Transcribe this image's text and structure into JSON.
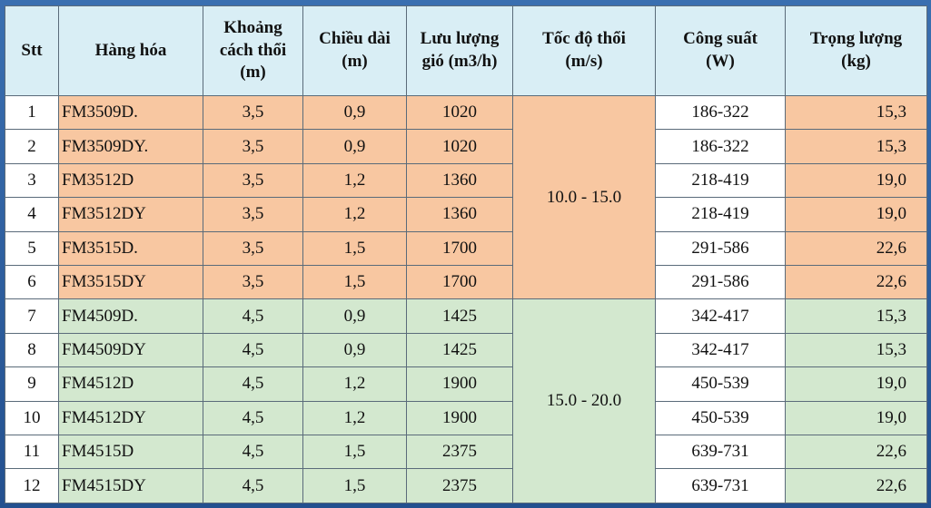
{
  "headers": {
    "stt": "Stt",
    "product": "Hàng hóa",
    "distance_l1": "Khoảng",
    "distance_l2": "cách thổi",
    "distance_l3": "(m)",
    "length_l1": "Chiều dài",
    "length_l2": "(m)",
    "airflow_l1": "Lưu lượng",
    "airflow_l2": "gió (m3/h)",
    "speed_l1": "Tốc độ thổi",
    "speed_l2": "(m/s)",
    "power_l1": "Công suất",
    "power_l2": "(W)",
    "weight_l1": "Trọng lượng",
    "weight_l2": "(kg)"
  },
  "speed_groups": [
    "10.0 - 15.0",
    "15.0 - 20.0"
  ],
  "rows": [
    {
      "stt": "1",
      "product": "FM3509D.",
      "distance": "3,5",
      "length": "0,9",
      "airflow": "1020",
      "power": "186-322",
      "weight": "15,3"
    },
    {
      "stt": "2",
      "product": "FM3509DY.",
      "distance": "3,5",
      "length": "0,9",
      "airflow": "1020",
      "power": "186-322",
      "weight": "15,3"
    },
    {
      "stt": "3",
      "product": "FM3512D",
      "distance": "3,5",
      "length": "1,2",
      "airflow": "1360",
      "power": "218-419",
      "weight": "19,0"
    },
    {
      "stt": "4",
      "product": "FM3512DY",
      "distance": "3,5",
      "length": "1,2",
      "airflow": "1360",
      "power": "218-419",
      "weight": "19,0"
    },
    {
      "stt": "5",
      "product": "FM3515D.",
      "distance": "3,5",
      "length": "1,5",
      "airflow": "1700",
      "power": "291-586",
      "weight": "22,6"
    },
    {
      "stt": "6",
      "product": "FM3515DY",
      "distance": "3,5",
      "length": "1,5",
      "airflow": "1700",
      "power": "291-586",
      "weight": "22,6"
    },
    {
      "stt": "7",
      "product": "FM4509D.",
      "distance": "4,5",
      "length": "0,9",
      "airflow": "1425",
      "power": "342-417",
      "weight": "15,3"
    },
    {
      "stt": "8",
      "product": "FM4509DY",
      "distance": "4,5",
      "length": "0,9",
      "airflow": "1425",
      "power": "342-417",
      "weight": "15,3"
    },
    {
      "stt": "9",
      "product": "FM4512D",
      "distance": "4,5",
      "length": "1,2",
      "airflow": "1900",
      "power": "450-539",
      "weight": "19,0"
    },
    {
      "stt": "10",
      "product": "FM4512DY",
      "distance": "4,5",
      "length": "1,2",
      "airflow": "1900",
      "power": "450-539",
      "weight": "19,0"
    },
    {
      "stt": "11",
      "product": "FM4515D",
      "distance": "4,5",
      "length": "1,5",
      "airflow": "2375",
      "power": "639-731",
      "weight": "22,6"
    },
    {
      "stt": "12",
      "product": "FM4515DY",
      "distance": "4,5",
      "length": "1,5",
      "airflow": "2375",
      "power": "639-731",
      "weight": "22,6"
    }
  ],
  "colors": {
    "header": "#d9eef5",
    "group1": "#f8c7a1",
    "group2": "#d3e8cf",
    "frame": "#2f5f9e"
  }
}
